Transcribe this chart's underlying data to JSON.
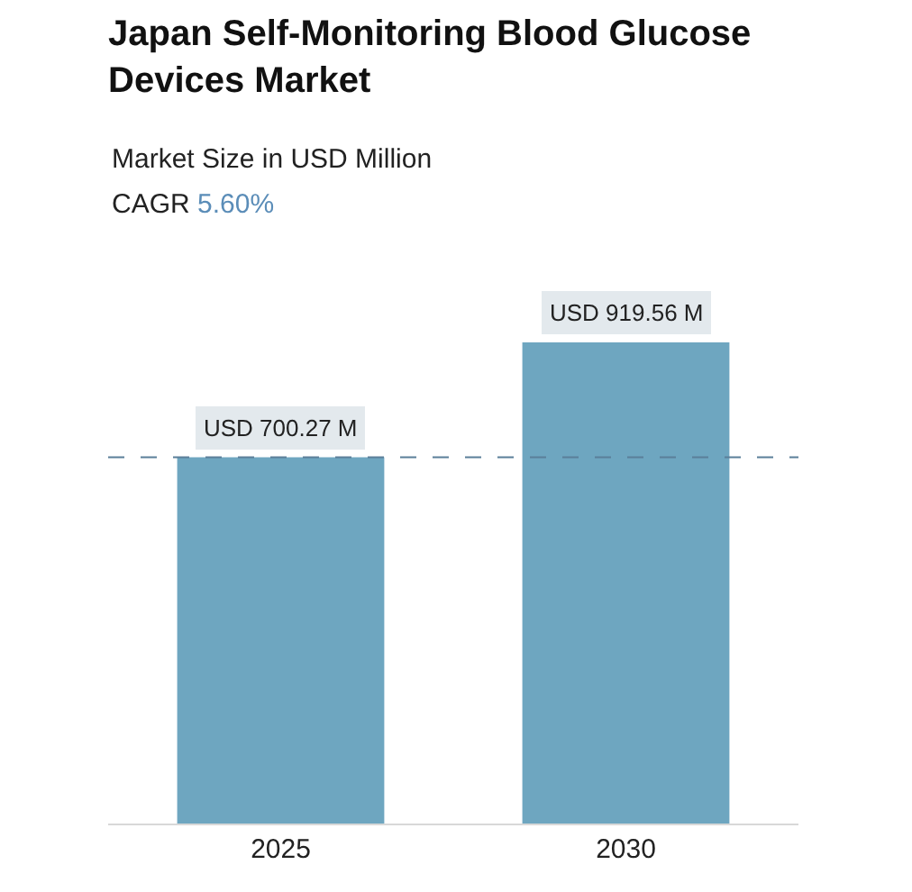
{
  "chart_data": {
    "type": "bar",
    "title": "Japan Self-Monitoring Blood Glucose Devices Market",
    "subtitle": "Market Size in USD Million",
    "annotations": [
      "CAGR",
      "5.60%"
    ],
    "categories": [
      "2025",
      "2030"
    ],
    "values": [
      700.27,
      919.56
    ],
    "value_labels": [
      "USD 700.27 M",
      "USD 919.56 M"
    ],
    "colors": [
      "#6ea6c0",
      "#6ea6c0"
    ],
    "ref_lines": [
      {
        "axis": "y",
        "value": 700.27,
        "color": "#5b7f99",
        "line_style": "dashed"
      }
    ],
    "grid": false,
    "legend": false
  }
}
